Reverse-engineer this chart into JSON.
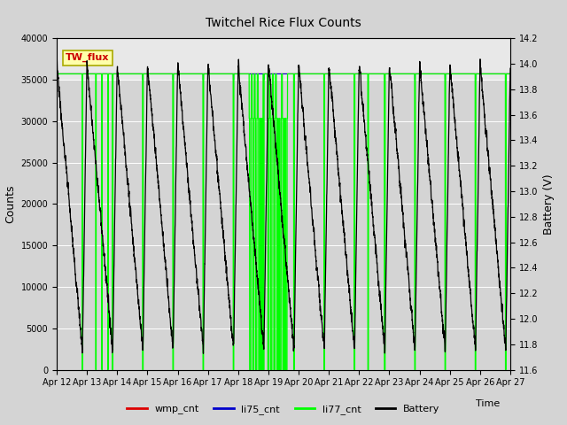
{
  "title": "Twitchel Rice Flux Counts",
  "xlabel": "Time",
  "ylabel_left": "Counts",
  "ylabel_right": "Battery (V)",
  "ylim_left": [
    0,
    40000
  ],
  "ylim_right": [
    11.6,
    14.2
  ],
  "x_tick_labels": [
    "Apr 12",
    "Apr 13",
    "Apr 14",
    "Apr 15",
    "Apr 16",
    "Apr 17",
    "Apr 18",
    "Apr 19",
    "Apr 20",
    "Apr 21",
    "Apr 22",
    "Apr 23",
    "Apr 24",
    "Apr 25",
    "Apr 26",
    "Apr 27"
  ],
  "yticks_left": [
    0,
    5000,
    10000,
    15000,
    20000,
    25000,
    30000,
    35000,
    40000
  ],
  "yticks_right": [
    11.6,
    11.8,
    12.0,
    12.2,
    12.4,
    12.6,
    12.8,
    13.0,
    13.2,
    13.4,
    13.6,
    13.8,
    14.0,
    14.2
  ],
  "background_color": "#d4d4d4",
  "plot_bg_color": "#d4d4d4",
  "upper_band_color": "#e8e8e8",
  "twflux_box_facecolor": "#ffffaa",
  "twflux_box_edgecolor": "#aaaa00",
  "twflux_text_color": "#cc0000",
  "li77_color": "#00ff00",
  "li75_color": "#0000cc",
  "wmp_color": "#dd0000",
  "battery_color": "#000000",
  "li77_level": 35700,
  "legend_labels": [
    "wmp_cnt",
    "li75_cnt",
    "li77_cnt",
    "Battery"
  ],
  "legend_colors": [
    "#dd0000",
    "#0000cc",
    "#00ff00",
    "#000000"
  ],
  "batt_min": 11.6,
  "batt_max": 14.2,
  "counts_min": 0,
  "counts_max": 40000
}
